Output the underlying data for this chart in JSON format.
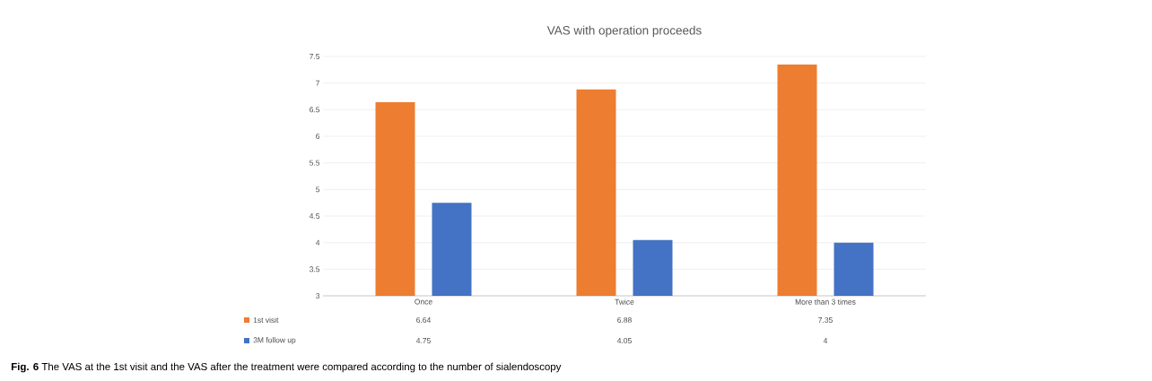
{
  "chart_data": {
    "type": "bar",
    "title": "VAS with operation proceeds",
    "categories": [
      "Once",
      "Twice",
      "More than 3 times"
    ],
    "series": [
      {
        "name": "1st visit",
        "color": "#ed7d31",
        "values": [
          6.64,
          6.88,
          7.35
        ]
      },
      {
        "name": "3M follow up",
        "color": "#4472c4",
        "values": [
          4.75,
          4.05,
          4
        ]
      }
    ],
    "ylim": [
      3,
      7.5
    ],
    "yticks": [
      3,
      3.5,
      4,
      4.5,
      5,
      5.5,
      6,
      6.5,
      7,
      7.5
    ],
    "grid": "y",
    "legend": "bottom",
    "data_labels": true,
    "annotations": [
      "**Fig. 6** The VAS at the 1st visit and the VAS after the treatment were compared according to the number of sialendoscopy"
    ]
  }
}
